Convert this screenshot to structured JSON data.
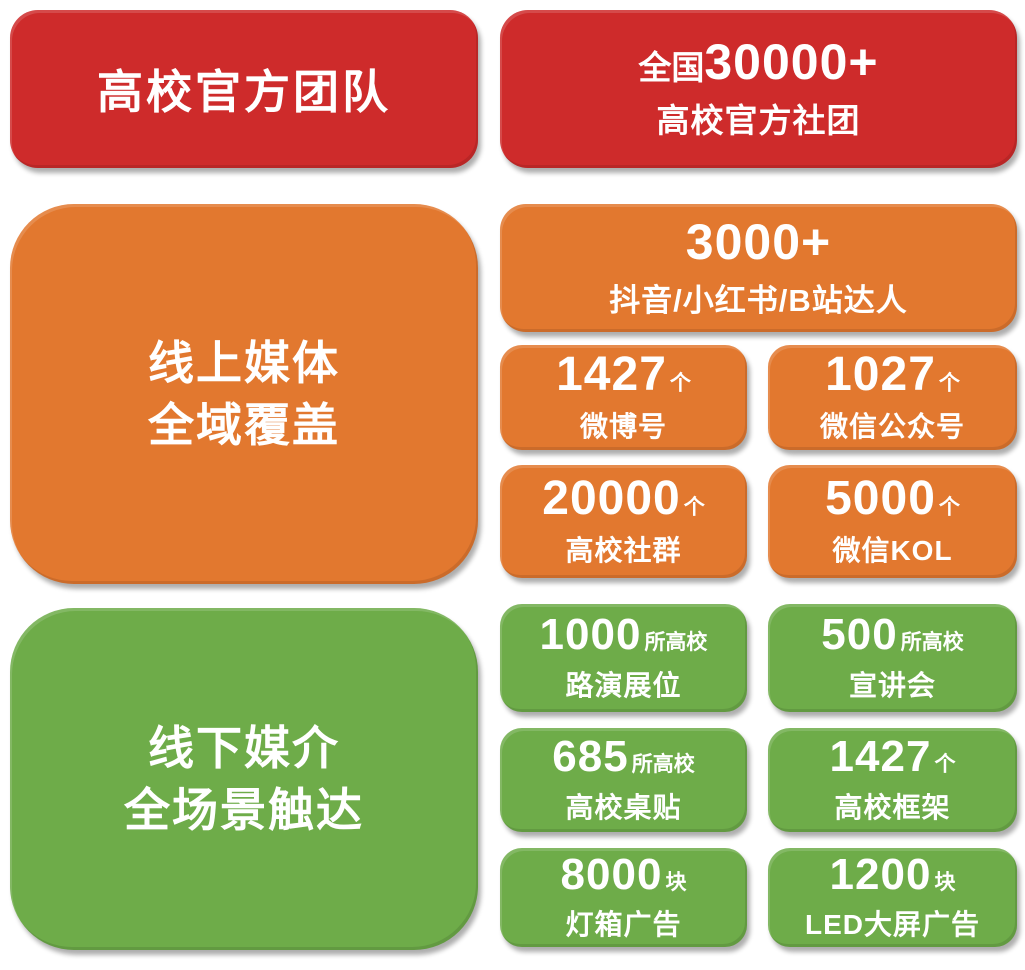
{
  "colors": {
    "red": "#ce2b2b",
    "orange": "#e2782f",
    "green": "#6eac49",
    "text": "#ffffff",
    "background": "#ffffff"
  },
  "official": {
    "title": "高校官方团队",
    "stat": {
      "prefix": "全国",
      "number": "30000+",
      "label": "高校官方社团"
    }
  },
  "online": {
    "title_line1": "线上媒体",
    "title_line2": "全域覆盖",
    "wide": {
      "number": "3000+",
      "label": "抖音/小红书/B站达人"
    },
    "stats": [
      {
        "number": "1427",
        "unit": "个",
        "label": "微博号"
      },
      {
        "number": "1027",
        "unit": "个",
        "label": "微信公众号"
      },
      {
        "number": "20000",
        "unit": "个",
        "label": "高校社群"
      },
      {
        "number": "5000",
        "unit": "个",
        "label": "微信KOL"
      }
    ]
  },
  "offline": {
    "title_line1": "线下媒介",
    "title_line2": "全场景触达",
    "stats": [
      {
        "number": "1000",
        "unit": "所高校",
        "label": "路演展位"
      },
      {
        "number": "500",
        "unit": "所高校",
        "label": "宣讲会"
      },
      {
        "number": "685",
        "unit": "所高校",
        "label": "高校桌贴"
      },
      {
        "number": "1427",
        "unit": "个",
        "label": "高校框架"
      },
      {
        "number": "8000",
        "unit": "块",
        "label": "灯箱广告"
      },
      {
        "number": "1200",
        "unit": "块",
        "label": "LED大屏广告"
      }
    ]
  }
}
